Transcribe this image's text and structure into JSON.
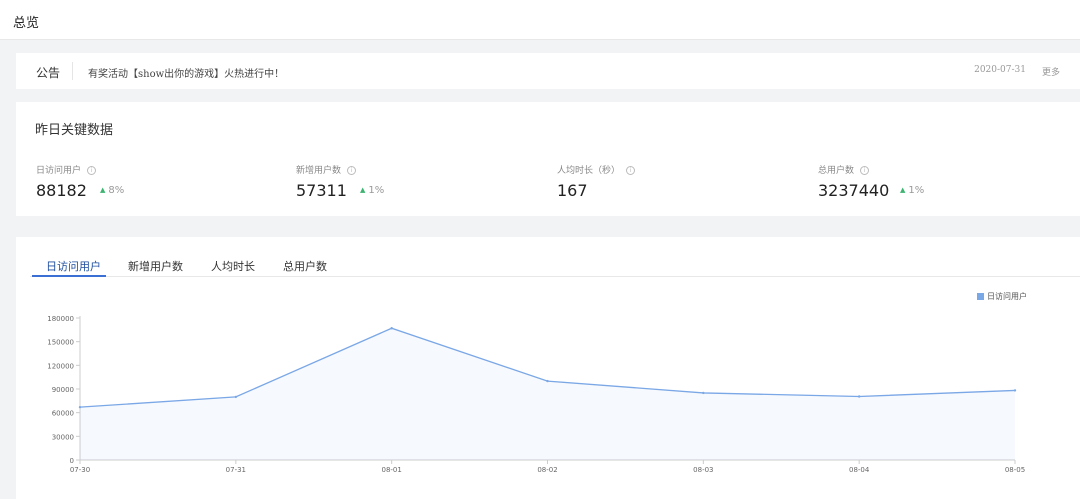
{
  "header": {
    "title": "总览"
  },
  "notice": {
    "label": "公告",
    "text": "有奖活动【show出你的游戏】火热进行中！",
    "date": "2020-07-31",
    "more": "更多"
  },
  "key_data": {
    "title": "昨日关键数据",
    "metrics": [
      {
        "label": "日访问用户",
        "value": "88182",
        "trend": "8%",
        "trend_direction": "up",
        "icon": "info-icon"
      },
      {
        "label": "新增用户数",
        "value": "57311",
        "trend": "1%",
        "trend_direction": "up",
        "icon": "info-icon"
      },
      {
        "label": "人均时长（秒）",
        "value": "167",
        "icon": "info-icon"
      },
      {
        "label": "总用户数",
        "value": "3237440",
        "trend": "1%",
        "trend_direction": "up",
        "icon": "info-icon"
      }
    ]
  },
  "tabs": {
    "active_index": 0,
    "items": [
      "日访问用户",
      "新增用户数",
      "人均时长",
      "总用户数"
    ]
  },
  "colors": {
    "accent": "#3b6fd4",
    "series": "#7aa7e6",
    "up": "#3cb371"
  },
  "chart_data": {
    "type": "area",
    "categories": [
      "07-30",
      "07-31",
      "08-01",
      "08-02",
      "08-03",
      "08-04",
      "08-05"
    ],
    "series": [
      {
        "name": "日访问用户",
        "values": [
          67000,
          80000,
          167000,
          100000,
          85000,
          80500,
          88182
        ]
      }
    ],
    "yticks": [
      "0",
      "30000",
      "60000",
      "90000",
      "120000",
      "150000",
      "180000"
    ],
    "ylim": [
      0,
      180000
    ],
    "legend_position": "top-right",
    "grid": false
  }
}
